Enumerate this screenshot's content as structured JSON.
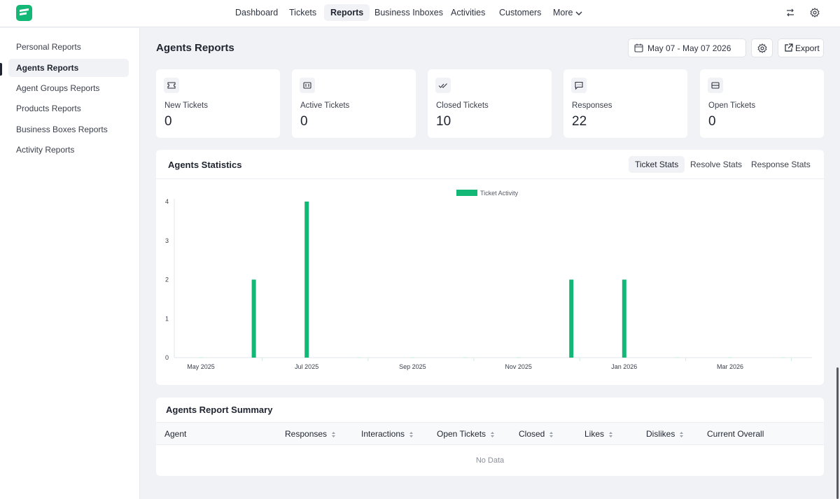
{
  "nav": {
    "items": [
      {
        "label": "Dashboard"
      },
      {
        "label": "Tickets"
      },
      {
        "label": "Reports"
      },
      {
        "label": "Business Inboxes"
      },
      {
        "label": "Activities"
      },
      {
        "label": "Customers"
      },
      {
        "label": "More"
      }
    ],
    "active": "Reports"
  },
  "sidebar": {
    "items": [
      {
        "label": "Personal Reports"
      },
      {
        "label": "Agents Reports"
      },
      {
        "label": "Agent Groups Reports"
      },
      {
        "label": "Products Reports"
      },
      {
        "label": "Business Boxes Reports"
      },
      {
        "label": "Activity Reports"
      }
    ],
    "active": "Agents Reports"
  },
  "header": {
    "title": "Agents Reports",
    "date_range": "May 07 - May 07 2026",
    "export_label": "Export"
  },
  "cards": [
    {
      "label": "New Tickets",
      "value": "0",
      "icon": "ticket-icon"
    },
    {
      "label": "Active Tickets",
      "value": "0",
      "icon": "active-ticket-icon"
    },
    {
      "label": "Closed Tickets",
      "value": "10",
      "icon": "double-check-icon"
    },
    {
      "label": "Responses",
      "value": "22",
      "icon": "message-icon"
    },
    {
      "label": "Open Tickets",
      "value": "0",
      "icon": "open-ticket-icon"
    }
  ],
  "stats": {
    "title": "Agents Statistics",
    "tabs": [
      {
        "label": "Ticket Stats"
      },
      {
        "label": "Resolve Stats"
      },
      {
        "label": "Response Stats"
      }
    ],
    "active_tab": "Ticket Stats"
  },
  "chart_data": {
    "type": "bar",
    "categories": [
      "May 2025",
      "Jun 2025",
      "Jul 2025",
      "Aug 2025",
      "Sep 2025",
      "Oct 2025",
      "Nov 2025",
      "Dec 2025",
      "Jan 2026",
      "Feb 2026",
      "Mar 2026",
      "Apr 2026"
    ],
    "x_tick_labels": [
      "May 2025",
      "Jul 2025",
      "Sep 2025",
      "Nov 2025",
      "Jan 2026",
      "Mar 2026"
    ],
    "series": [
      {
        "name": "Ticket Activity",
        "values": [
          0,
          2,
          4,
          0,
          0,
          0,
          0,
          2,
          2,
          0,
          0,
          0
        ],
        "color": "#13b876"
      }
    ],
    "ylim": [
      0,
      4
    ],
    "y_ticks": [
      "0",
      "1",
      "2",
      "3",
      "4"
    ],
    "legend": "top-center",
    "grid": false
  },
  "summary": {
    "title": "Agents Report Summary",
    "columns": [
      {
        "label": "Agent",
        "sortable": false
      },
      {
        "label": "Responses",
        "sortable": true
      },
      {
        "label": "Interactions",
        "sortable": true
      },
      {
        "label": "Open Tickets",
        "sortable": true
      },
      {
        "label": "Closed",
        "sortable": true
      },
      {
        "label": "Likes",
        "sortable": true
      },
      {
        "label": "Dislikes",
        "sortable": true
      },
      {
        "label": "Current Overall",
        "sortable": false
      }
    ],
    "empty_text": "No Data"
  }
}
